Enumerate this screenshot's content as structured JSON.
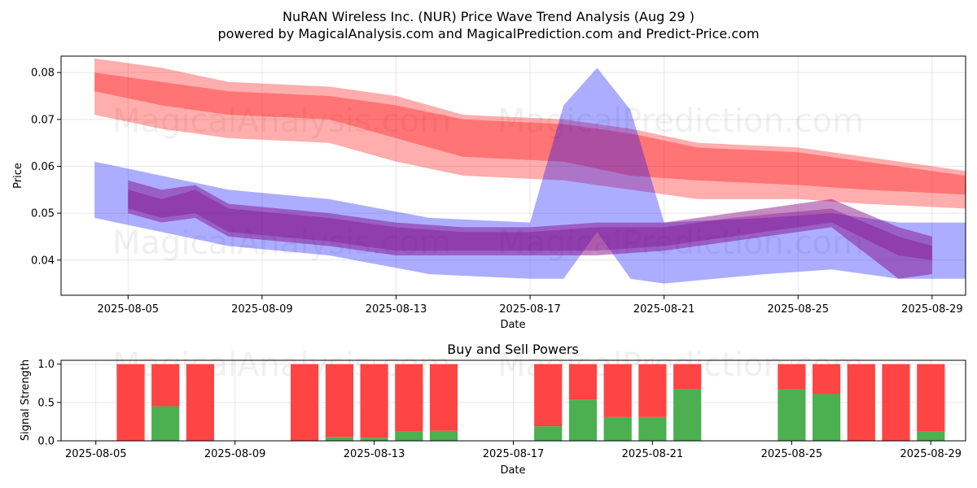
{
  "header": {
    "title": "NuRAN Wireless Inc. (NUR) Price Wave Trend Analysis (Aug 29 )",
    "subtitle": "powered by MagicalAnalysis.com and MagicalPrediction.com and Predict-Price.com"
  },
  "watermarks": [
    "MagicalAnalysis.com",
    "MagicalPrediction.com"
  ],
  "colors": {
    "bearish_band": "#ff0000",
    "bullish_band": "#0000ff",
    "price_band": "#800080",
    "buy": "#4caf50",
    "sell": "#ff4444"
  },
  "chart_data": [
    {
      "type": "area",
      "title": "",
      "xlabel": "Date",
      "ylabel": "Price",
      "x_start": "2025-08-04",
      "x_range": [
        "2025-08-03",
        "2025-08-30"
      ],
      "ylim": [
        0.0325,
        0.0835
      ],
      "xticks": [
        "2025-08-05",
        "2025-08-09",
        "2025-08-13",
        "2025-08-17",
        "2025-08-21",
        "2025-08-25",
        "2025-08-29"
      ],
      "yticks": [
        "0.04",
        "0.05",
        "0.06",
        "0.07",
        "0.08"
      ],
      "grid": true,
      "series": [
        {
          "x": [
            "2025-08-04",
            "2025-08-06",
            "2025-08-08",
            "2025-08-11",
            "2025-08-13",
            "2025-08-15",
            "2025-08-18",
            "2025-08-20",
            "2025-08-22",
            "2025-08-25",
            "2025-08-27",
            "2025-08-30"
          ],
          "upper": [
            0.083,
            0.081,
            0.078,
            0.077,
            0.075,
            0.071,
            0.07,
            0.068,
            0.065,
            0.064,
            0.062,
            0.059
          ],
          "lower": [
            0.076,
            0.073,
            0.071,
            0.07,
            0.066,
            0.062,
            0.061,
            0.058,
            0.057,
            0.056,
            0.055,
            0.054
          ]
        },
        {
          "x": [
            "2025-08-04",
            "2025-08-06",
            "2025-08-08",
            "2025-08-11",
            "2025-08-13",
            "2025-08-15",
            "2025-08-18",
            "2025-08-20",
            "2025-08-22",
            "2025-08-25",
            "2025-08-27",
            "2025-08-30"
          ],
          "upper": [
            0.08,
            0.078,
            0.076,
            0.075,
            0.073,
            0.07,
            0.069,
            0.067,
            0.064,
            0.063,
            0.061,
            0.058
          ],
          "lower": [
            0.071,
            0.068,
            0.066,
            0.065,
            0.061,
            0.058,
            0.057,
            0.055,
            0.053,
            0.053,
            0.052,
            0.051
          ]
        },
        {
          "x": [
            "2025-08-04",
            "2025-08-06",
            "2025-08-08",
            "2025-08-11",
            "2025-08-14",
            "2025-08-17",
            "2025-08-18",
            "2025-08-19",
            "2025-08-20",
            "2025-08-21",
            "2025-08-24",
            "2025-08-26",
            "2025-08-28",
            "2025-08-30"
          ],
          "upper": [
            0.061,
            0.058,
            0.055,
            0.053,
            0.049,
            0.048,
            0.073,
            0.081,
            0.072,
            0.048,
            0.049,
            0.05,
            0.048,
            0.048
          ],
          "lower": [
            0.049,
            0.046,
            0.043,
            0.041,
            0.037,
            0.036,
            0.036,
            0.046,
            0.036,
            0.035,
            0.037,
            0.038,
            0.036,
            0.036
          ]
        },
        {
          "x": [
            "2025-08-05",
            "2025-08-06",
            "2025-08-07",
            "2025-08-08",
            "2025-08-11",
            "2025-08-13",
            "2025-08-15",
            "2025-08-17",
            "2025-08-19",
            "2025-08-21",
            "2025-08-23",
            "2025-08-26",
            "2025-08-28",
            "2025-08-29"
          ],
          "upper": [
            0.057,
            0.055,
            0.056,
            0.052,
            0.05,
            0.048,
            0.047,
            0.047,
            0.048,
            0.048,
            0.05,
            0.053,
            0.047,
            0.045
          ],
          "lower": [
            0.05,
            0.048,
            0.049,
            0.045,
            0.043,
            0.041,
            0.041,
            0.041,
            0.041,
            0.042,
            0.044,
            0.047,
            0.036,
            0.037
          ]
        },
        {
          "x": [
            "2025-08-05",
            "2025-08-06",
            "2025-08-07",
            "2025-08-08",
            "2025-08-11",
            "2025-08-13",
            "2025-08-15",
            "2025-08-17",
            "2025-08-19",
            "2025-08-21",
            "2025-08-23",
            "2025-08-26",
            "2025-08-28",
            "2025-08-29"
          ],
          "upper": [
            0.055,
            0.053,
            0.055,
            0.051,
            0.049,
            0.047,
            0.046,
            0.046,
            0.047,
            0.047,
            0.049,
            0.051,
            0.045,
            0.043
          ],
          "lower": [
            0.051,
            0.049,
            0.05,
            0.046,
            0.044,
            0.042,
            0.042,
            0.042,
            0.042,
            0.043,
            0.045,
            0.048,
            0.041,
            0.04
          ]
        }
      ]
    },
    {
      "type": "bar",
      "title": "Buy and Sell Powers",
      "xlabel": "Date",
      "ylabel": "Signal Strength",
      "x_range": [
        "2025-08-04",
        "2025-08-30"
      ],
      "ylim": [
        0,
        1.05
      ],
      "xticks": [
        "2025-08-05",
        "2025-08-09",
        "2025-08-13",
        "2025-08-17",
        "2025-08-21",
        "2025-08-25",
        "2025-08-29"
      ],
      "yticks": [
        "0.0",
        "0.5",
        "1.0"
      ],
      "grid": true,
      "x": [
        "2025-08-06",
        "2025-08-07",
        "2025-08-08",
        "2025-08-11",
        "2025-08-12",
        "2025-08-13",
        "2025-08-14",
        "2025-08-15",
        "2025-08-18",
        "2025-08-19",
        "2025-08-20",
        "2025-08-21",
        "2025-08-22",
        "2025-08-25",
        "2025-08-26",
        "2025-08-27",
        "2025-08-28",
        "2025-08-29"
      ],
      "series": [
        {
          "values": [
            0.0,
            0.45,
            0.0,
            0.0,
            0.05,
            0.04,
            0.12,
            0.13,
            0.19,
            0.54,
            0.31,
            0.31,
            0.67,
            0.67,
            0.61,
            0.0,
            0.0,
            0.12
          ]
        },
        {
          "values": [
            1.0,
            0.55,
            1.0,
            1.0,
            0.95,
            0.96,
            0.88,
            0.87,
            0.81,
            0.46,
            0.69,
            0.69,
            0.33,
            0.33,
            0.39,
            1.0,
            1.0,
            0.88
          ]
        }
      ]
    }
  ]
}
